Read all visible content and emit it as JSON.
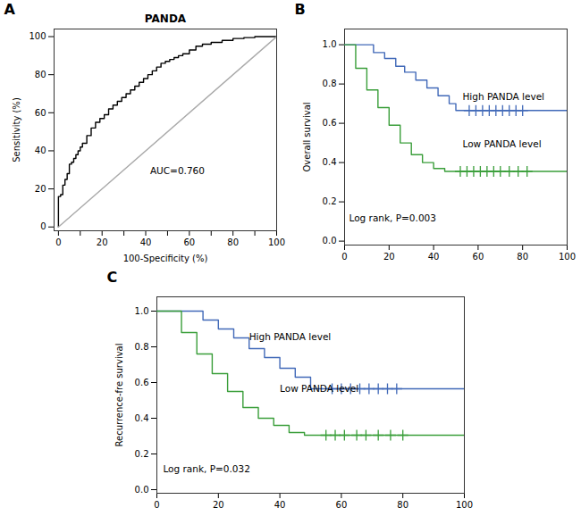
{
  "chart_data": [
    {
      "type": "line",
      "title": "PANDA",
      "xlabel": "100-Specificity (%)",
      "ylabel": "Sensitivity (%)",
      "xlim": [
        -2,
        100
      ],
      "ylim": [
        -2,
        104
      ],
      "xticks": [
        0,
        {
          "value": 10,
          "label": ""
        },
        20,
        {
          "value": 30,
          "label": ""
        },
        40,
        {
          "value": 50,
          "label": ""
        },
        60,
        {
          "value": 70,
          "label": ""
        },
        80,
        {
          "value": 90,
          "label": ""
        },
        100
      ],
      "yticks": [
        0,
        20,
        40,
        60,
        80,
        100
      ],
      "series": [
        {
          "type": "line",
          "color": "black",
          "x": [
            0,
            0,
            1,
            1,
            2,
            2,
            3,
            3,
            4,
            4,
            5,
            5,
            6,
            6,
            7,
            7,
            8,
            8,
            9,
            9,
            10,
            10,
            11,
            11,
            13,
            13,
            15,
            15,
            17,
            17,
            19,
            19,
            21,
            21,
            23,
            23,
            25,
            25,
            27,
            27,
            29,
            29,
            31,
            31,
            33,
            33,
            35,
            35,
            37,
            37,
            39,
            39,
            41,
            41,
            43,
            43,
            45,
            45,
            47,
            47,
            49,
            49,
            51,
            51,
            53,
            53,
            55,
            55,
            57,
            57,
            60,
            60,
            63,
            63,
            66,
            66,
            70,
            70,
            75,
            75,
            80,
            80,
            85,
            85,
            90,
            90,
            95,
            95,
            100
          ],
          "values": [
            0,
            16,
            16,
            17,
            17,
            22,
            22,
            25,
            25,
            28,
            28,
            33,
            33,
            34,
            34,
            36,
            36,
            38,
            38,
            40,
            40,
            42,
            42,
            44,
            44,
            48,
            48,
            52,
            52,
            55,
            55,
            57,
            57,
            59,
            59,
            62,
            62,
            64,
            64,
            66,
            66,
            68,
            68,
            70,
            70,
            72,
            72,
            74,
            74,
            76,
            76,
            78,
            78,
            80,
            80,
            82,
            82,
            84,
            84,
            86,
            86,
            87,
            87,
            88,
            88,
            89,
            89,
            90,
            90,
            91,
            91,
            93,
            93,
            95,
            95,
            96,
            96,
            97,
            97,
            98,
            98,
            99,
            99,
            99.5,
            99.5,
            100,
            100,
            100,
            100
          ]
        },
        {
          "type": "line",
          "color": "#aaaaaa",
          "x": [
            0,
            100
          ],
          "values": [
            0,
            100
          ]
        }
      ],
      "annotations": [
        {
          "text": "AUC=0.760",
          "x": 42,
          "y": 28
        },
        {
          "text": "A"
        }
      ]
    },
    {
      "type": "step",
      "ylabel": "Overall survival",
      "xlim": [
        0,
        100
      ],
      "ylim": [
        -0.02,
        1.08
      ],
      "xticks": [
        0,
        20,
        40,
        60,
        80,
        100
      ],
      "yticks": [
        {
          "value": 0.0,
          "label": "0.0"
        },
        {
          "value": 0.2,
          "label": "0.2"
        },
        {
          "value": 0.4,
          "label": "0.4"
        },
        {
          "value": 0.6,
          "label": "0.6"
        },
        {
          "value": 0.8,
          "label": "0.8"
        },
        {
          "value": 1.0,
          "label": "1.0"
        }
      ],
      "series": [
        {
          "type": "step",
          "color": "#4169b8",
          "x": [
            0,
            13,
            13,
            18,
            18,
            23,
            23,
            27,
            27,
            32,
            32,
            37,
            37,
            42,
            42,
            47,
            47,
            50,
            50,
            55,
            55,
            100
          ],
          "values": [
            1.0,
            1.0,
            0.96,
            0.96,
            0.93,
            0.93,
            0.89,
            0.89,
            0.86,
            0.86,
            0.82,
            0.82,
            0.78,
            0.78,
            0.74,
            0.74,
            0.7,
            0.7,
            0.665,
            0.665,
            0.665,
            0.665
          ]
        },
        {
          "type": "scatter",
          "marker": "plus",
          "color": "#4169b8",
          "x": [
            56,
            59,
            62,
            65,
            68,
            71,
            74,
            77,
            80
          ],
          "values": [
            0.665,
            0.665,
            0.665,
            0.665,
            0.665,
            0.665,
            0.665,
            0.665,
            0.665
          ]
        },
        {
          "type": "step",
          "color": "#3a9e3a",
          "x": [
            0,
            5,
            5,
            10,
            10,
            15,
            15,
            20,
            20,
            25,
            25,
            30,
            30,
            35,
            35,
            40,
            40,
            45,
            45,
            50,
            50,
            100
          ],
          "values": [
            1.0,
            1.0,
            0.88,
            0.88,
            0.77,
            0.77,
            0.68,
            0.68,
            0.59,
            0.59,
            0.5,
            0.5,
            0.44,
            0.44,
            0.4,
            0.4,
            0.37,
            0.37,
            0.355,
            0.355,
            0.355,
            0.355
          ]
        },
        {
          "type": "scatter",
          "marker": "plus",
          "color": "#3a9e3a",
          "x": [
            52,
            55,
            58,
            61,
            64,
            67,
            70,
            74,
            78,
            82
          ],
          "values": [
            0.355,
            0.355,
            0.355,
            0.355,
            0.355,
            0.355,
            0.355,
            0.355,
            0.355,
            0.355
          ]
        }
      ],
      "annotations": [
        {
          "text": "High PANDA level",
          "x": 53,
          "y": 0.72
        },
        {
          "text": "Low PANDA level",
          "x": 53,
          "y": 0.48
        },
        {
          "text": "Log rank, P=0.003",
          "x": 2,
          "y": 0.1
        },
        {
          "text": "B"
        }
      ]
    },
    {
      "type": "step",
      "ylabel": "Recurrence-fre survival",
      "xlim": [
        0,
        100
      ],
      "ylim": [
        -0.02,
        1.08
      ],
      "xticks": [
        0,
        20,
        40,
        60,
        80,
        100
      ],
      "yticks": [
        {
          "value": 0.0,
          "label": "0.0"
        },
        {
          "value": 0.2,
          "label": "0.2"
        },
        {
          "value": 0.4,
          "label": "0.4"
        },
        {
          "value": 0.6,
          "label": "0.6"
        },
        {
          "value": 0.8,
          "label": "0.8"
        },
        {
          "value": 1.0,
          "label": "1.0"
        }
      ],
      "series": [
        {
          "type": "step",
          "color": "#4169b8",
          "x": [
            0,
            15,
            15,
            20,
            20,
            25,
            25,
            30,
            30,
            35,
            35,
            40,
            40,
            45,
            45,
            50,
            50,
            55,
            55,
            100
          ],
          "values": [
            1.0,
            1.0,
            0.95,
            0.95,
            0.9,
            0.9,
            0.85,
            0.85,
            0.79,
            0.79,
            0.74,
            0.74,
            0.68,
            0.68,
            0.63,
            0.63,
            0.565,
            0.565,
            0.565,
            0.565
          ]
        },
        {
          "type": "scatter",
          "marker": "plus",
          "color": "#4169b8",
          "x": [
            57,
            60,
            63,
            66,
            69,
            72,
            75,
            78
          ],
          "values": [
            0.565,
            0.565,
            0.565,
            0.565,
            0.565,
            0.565,
            0.565,
            0.565
          ]
        },
        {
          "type": "step",
          "color": "#3a9e3a",
          "x": [
            0,
            8,
            8,
            13,
            13,
            18,
            18,
            23,
            23,
            28,
            28,
            33,
            33,
            38,
            38,
            43,
            43,
            48,
            48,
            53,
            53,
            100
          ],
          "values": [
            1.0,
            1.0,
            0.88,
            0.88,
            0.76,
            0.76,
            0.65,
            0.65,
            0.55,
            0.55,
            0.46,
            0.46,
            0.4,
            0.4,
            0.36,
            0.36,
            0.32,
            0.32,
            0.305,
            0.305,
            0.305,
            0.305
          ]
        },
        {
          "type": "scatter",
          "marker": "plus",
          "color": "#3a9e3a",
          "x": [
            55,
            58,
            61,
            65,
            68,
            72,
            76,
            80
          ],
          "values": [
            0.305,
            0.305,
            0.305,
            0.305,
            0.305,
            0.305,
            0.305,
            0.305
          ]
        }
      ],
      "annotations": [
        {
          "text": "High PANDA level",
          "x": 30,
          "y": 0.84
        },
        {
          "text": "Low PANDA level",
          "x": 40,
          "y": 0.55
        },
        {
          "text": "Log rank, P=0.032",
          "x": 2,
          "y": 0.1
        },
        {
          "text": "C"
        }
      ]
    }
  ]
}
